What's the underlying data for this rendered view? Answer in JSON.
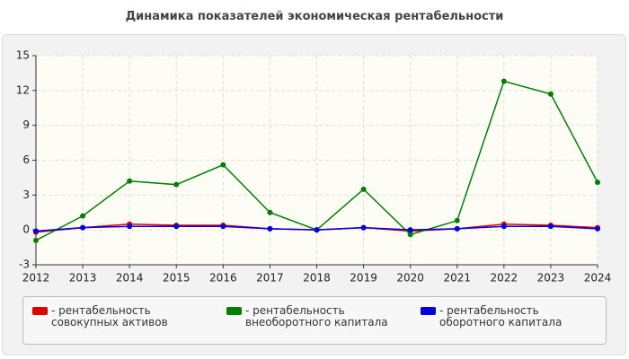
{
  "chart_data": {
    "type": "line",
    "title": "Динамика показателей экономическая рентабельности",
    "x": [
      2012,
      2013,
      2014,
      2015,
      2016,
      2017,
      2018,
      2019,
      2020,
      2021,
      2022,
      2023,
      2024
    ],
    "xlim": [
      2012,
      2024
    ],
    "xticks": [
      2012,
      2013,
      2014,
      2015,
      2016,
      2017,
      2018,
      2019,
      2020,
      2021,
      2022,
      2023,
      2024
    ],
    "ylim": [
      -3,
      15
    ],
    "yticks": [
      -3,
      0,
      3,
      6,
      9,
      12,
      15
    ],
    "grid": true,
    "series": [
      {
        "name": "- рентабельность совокупных активов",
        "color": "#e00000",
        "values": [
          -0.2,
          0.2,
          0.5,
          0.4,
          0.4,
          0.1,
          0,
          0.2,
          -0.1,
          0.1,
          0.5,
          0.4,
          0.2
        ]
      },
      {
        "name": "- рентабельность внеоборотного капитала",
        "color": "#008000",
        "values": [
          -0.9,
          1.2,
          4.2,
          3.9,
          5.6,
          1.5,
          0,
          3.5,
          -0.4,
          0.8,
          12.8,
          11.7,
          4.1
        ]
      },
      {
        "name": "- рентабельность оборотного капитала",
        "color": "#0000e0",
        "values": [
          -0.1,
          0.2,
          0.3,
          0.3,
          0.3,
          0.1,
          0,
          0.2,
          0,
          0.1,
          0.3,
          0.3,
          0.1
        ]
      }
    ]
  }
}
